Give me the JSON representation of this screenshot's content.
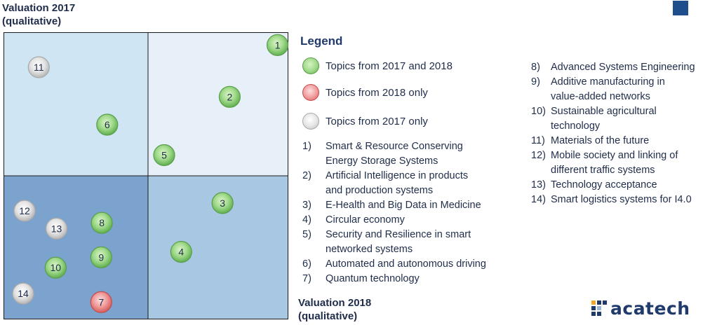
{
  "chart_data": {
    "type": "scatter",
    "ylabel_lines": [
      "Valuation 2017",
      "(qualitative)"
    ],
    "xlabel_lines": [
      "Valuation 2018",
      "(qualitative)"
    ],
    "quadrants": {
      "top_left": "#cfe5f3",
      "top_right": "#e7f0f8",
      "bottom_left": "#7ba3ce",
      "bottom_right": "#a8c7e3"
    },
    "categories": [
      {
        "key": "both",
        "label": "Topics from 2017 and 2018",
        "color": "#9fd98a"
      },
      {
        "key": "2018",
        "label": "Topics from 2018 only",
        "color": "#f19a9a"
      },
      {
        "key": "2017",
        "label": "Topics from 2017 only",
        "color": "#e4e4e4"
      }
    ],
    "x_range": [
      0,
      1
    ],
    "y_range": [
      0,
      1
    ],
    "points": [
      {
        "id": "1",
        "x": 0.962,
        "y": 0.955,
        "category": "both"
      },
      {
        "id": "2",
        "x": 0.794,
        "y": 0.775,
        "category": "both"
      },
      {
        "id": "3",
        "x": 0.769,
        "y": 0.405,
        "category": "both"
      },
      {
        "id": "4",
        "x": 0.624,
        "y": 0.235,
        "category": "both"
      },
      {
        "id": "5",
        "x": 0.564,
        "y": 0.572,
        "category": "both"
      },
      {
        "id": "6",
        "x": 0.364,
        "y": 0.678,
        "category": "both"
      },
      {
        "id": "7",
        "x": 0.343,
        "y": 0.06,
        "category": "2018"
      },
      {
        "id": "8",
        "x": 0.345,
        "y": 0.336,
        "category": "both"
      },
      {
        "id": "9",
        "x": 0.343,
        "y": 0.216,
        "category": "both"
      },
      {
        "id": "10",
        "x": 0.183,
        "y": 0.18,
        "category": "both"
      },
      {
        "id": "11",
        "x": 0.124,
        "y": 0.878,
        "category": "2017"
      },
      {
        "id": "12",
        "x": 0.074,
        "y": 0.378,
        "category": "2017"
      },
      {
        "id": "13",
        "x": 0.186,
        "y": 0.316,
        "category": "2017"
      },
      {
        "id": "14",
        "x": 0.069,
        "y": 0.09,
        "category": "2017"
      }
    ]
  },
  "legend": {
    "title": "Legend"
  },
  "topics_left": [
    {
      "num": "1)",
      "text": [
        "Smart & Resource Conserving",
        "Energy Storage Systems"
      ]
    },
    {
      "num": "2)",
      "text": [
        "Artificial Intelligence in products",
        "and production systems"
      ]
    },
    {
      "num": "3)",
      "text": [
        "E-Health and Big Data in Medicine"
      ]
    },
    {
      "num": "4)",
      "text": [
        "Circular economy"
      ]
    },
    {
      "num": "5)",
      "text": [
        "Security and Resilience in smart",
        "networked systems"
      ]
    },
    {
      "num": "6)",
      "text": [
        "Automated and autonomous driving"
      ]
    },
    {
      "num": "7)",
      "text": [
        "Quantum technology"
      ]
    }
  ],
  "topics_right": [
    {
      "num": "8)",
      "text": [
        "Advanced Systems Engineering"
      ]
    },
    {
      "num": "9)",
      "text": [
        "Additive manufacturing in",
        "value-added networks"
      ]
    },
    {
      "num": "10)",
      "text": [
        "Sustainable agricultural",
        "technology"
      ]
    },
    {
      "num": "11)",
      "text": [
        "Materials of the future"
      ]
    },
    {
      "num": "12)",
      "text": [
        "Mobile society and linking of",
        "different traffic systems"
      ]
    },
    {
      "num": "13)",
      "text": [
        "Technology acceptance"
      ]
    },
    {
      "num": "14)",
      "text": [
        "Smart logistics systems for I4.0"
      ]
    }
  ],
  "logo": {
    "text": "acatech",
    "color": "#1f3a6b"
  },
  "accent_square_color": "#1f4e8c"
}
